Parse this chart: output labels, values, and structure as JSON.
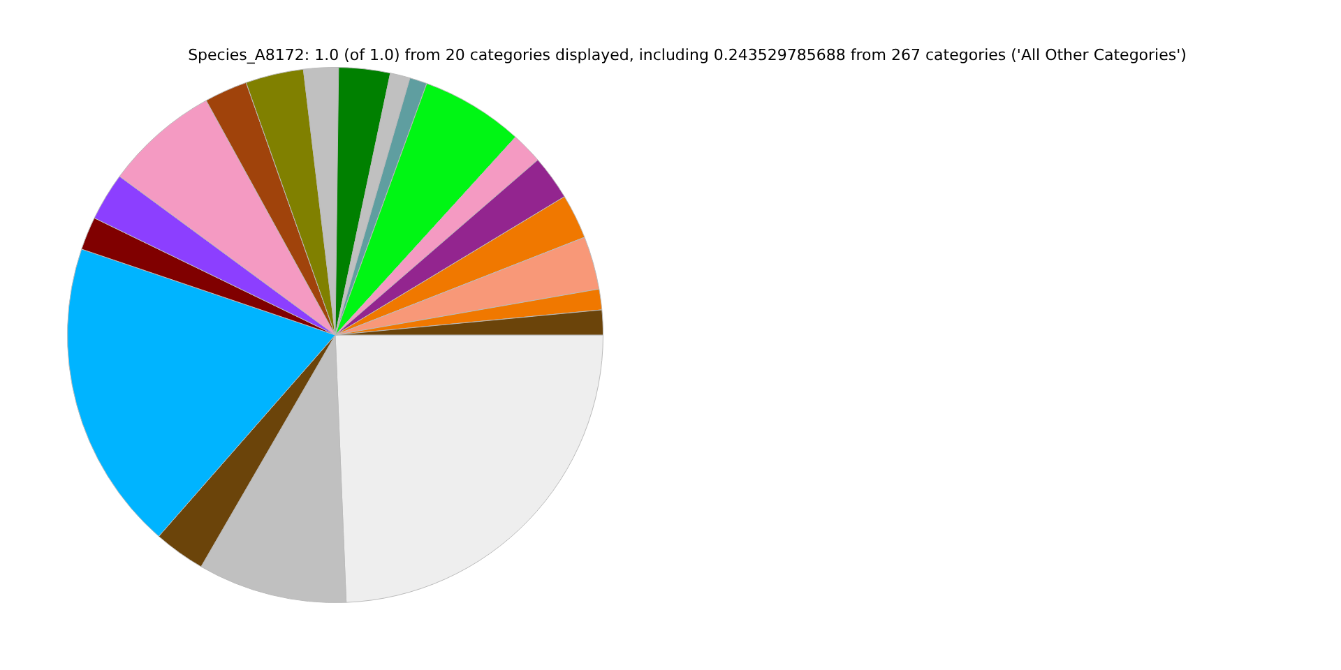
{
  "chart_data": {
    "type": "pie",
    "title": "Species_A8172: 1.0 (of 1.0) from 20 categories displayed, including 0.243529785688 from 267 categories ('All Other Categories')",
    "categories": [
      null,
      null,
      null,
      null,
      null,
      null,
      null,
      null,
      null,
      null,
      null,
      null,
      null,
      null,
      null,
      null,
      null,
      null,
      null,
      null
    ],
    "values": [
      24.35,
      9.0,
      3.1,
      18.75,
      2.0,
      2.9,
      6.9,
      2.6,
      3.5,
      2.1,
      3.1,
      1.2,
      1.05,
      6.2,
      1.9,
      2.7,
      2.7,
      3.2,
      1.25,
      1.5
    ],
    "colors": [
      "#eeeeee",
      "#c0c0c0",
      "#6b440a",
      "#00b4ff",
      "#800000",
      "#8c3fff",
      "#f49ac2",
      "#a0430b",
      "#808000",
      "#c0c0c0",
      "#008000",
      "#c0c0c0",
      "#5f9ea0",
      "#00f614",
      "#f49ac2",
      "#93258f",
      "#f07800",
      "#f89878",
      "#f07800",
      "#6b440a"
    ]
  }
}
